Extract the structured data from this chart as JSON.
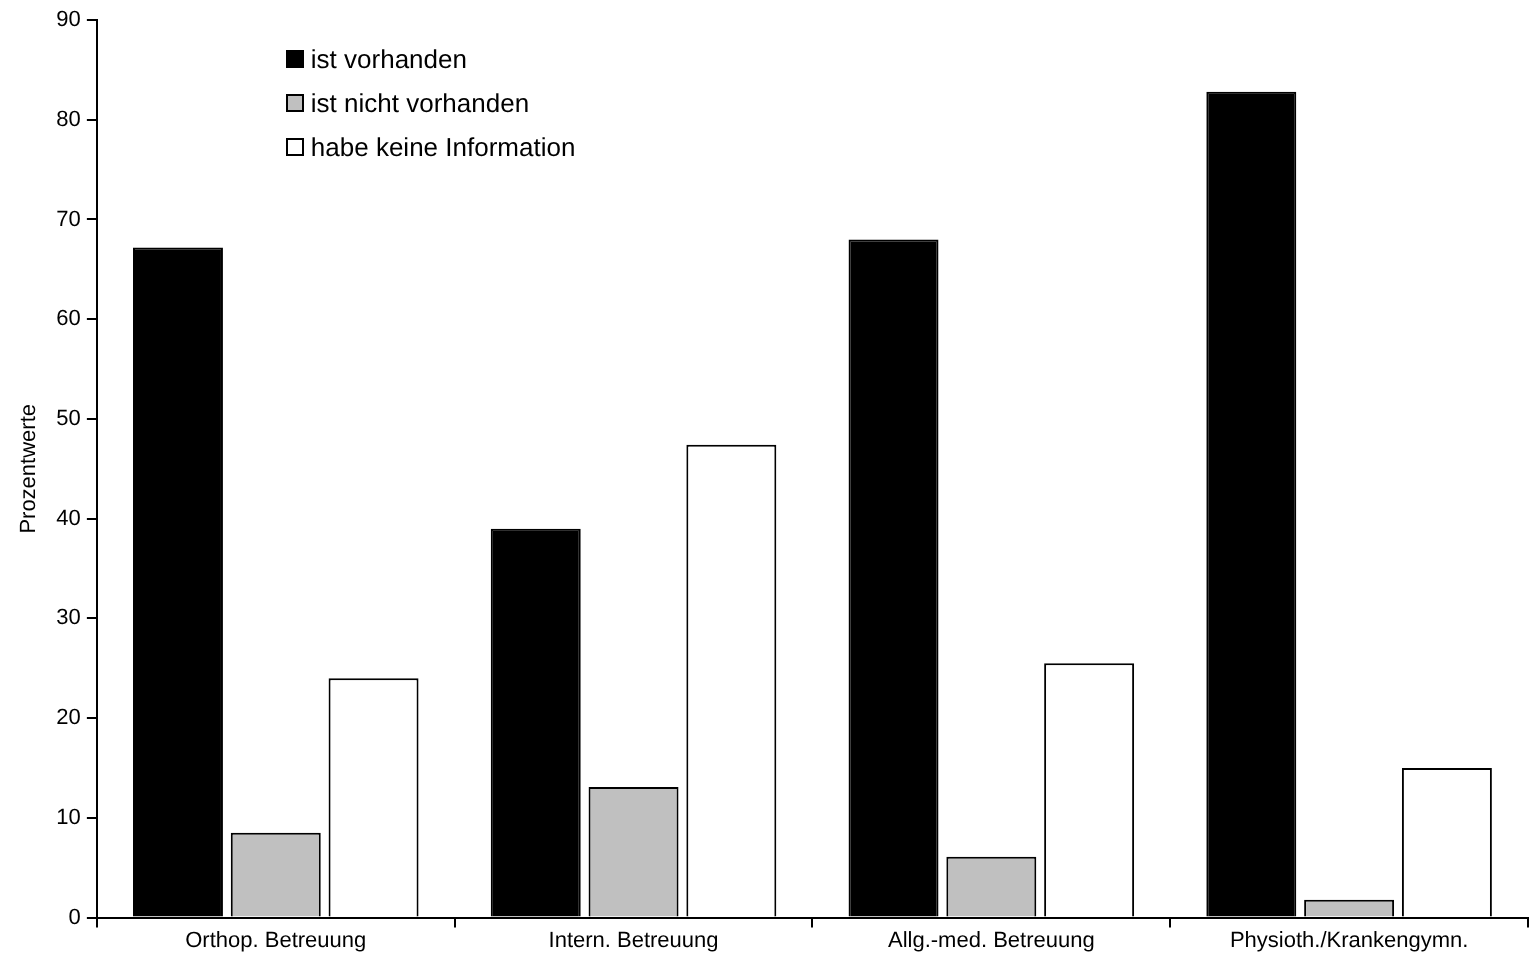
{
  "chart_data": {
    "type": "bar",
    "ylabel": "Prozentwerte",
    "categories": [
      "Orthop. Betreuung",
      "Intern. Betreuung",
      "Allg.-med. Betreuung",
      "Physioth./Krankengymn."
    ],
    "series": [
      {
        "name": "ist vorhanden",
        "color": "#000000",
        "values": [
          67.2,
          39.0,
          68.0,
          82.8
        ]
      },
      {
        "name": "ist nicht vorhanden",
        "color": "#c0c0c0",
        "values": [
          8.5,
          13.1,
          6.1,
          1.8
        ]
      },
      {
        "name": "habe keine Information",
        "color": "#ffffff",
        "values": [
          24.0,
          47.4,
          25.5,
          15.0
        ]
      }
    ],
    "ylim": [
      0,
      90
    ],
    "yticks": [
      0,
      10,
      20,
      30,
      40,
      50,
      60,
      70,
      80,
      90
    ],
    "grid": false,
    "legend": "top left"
  }
}
